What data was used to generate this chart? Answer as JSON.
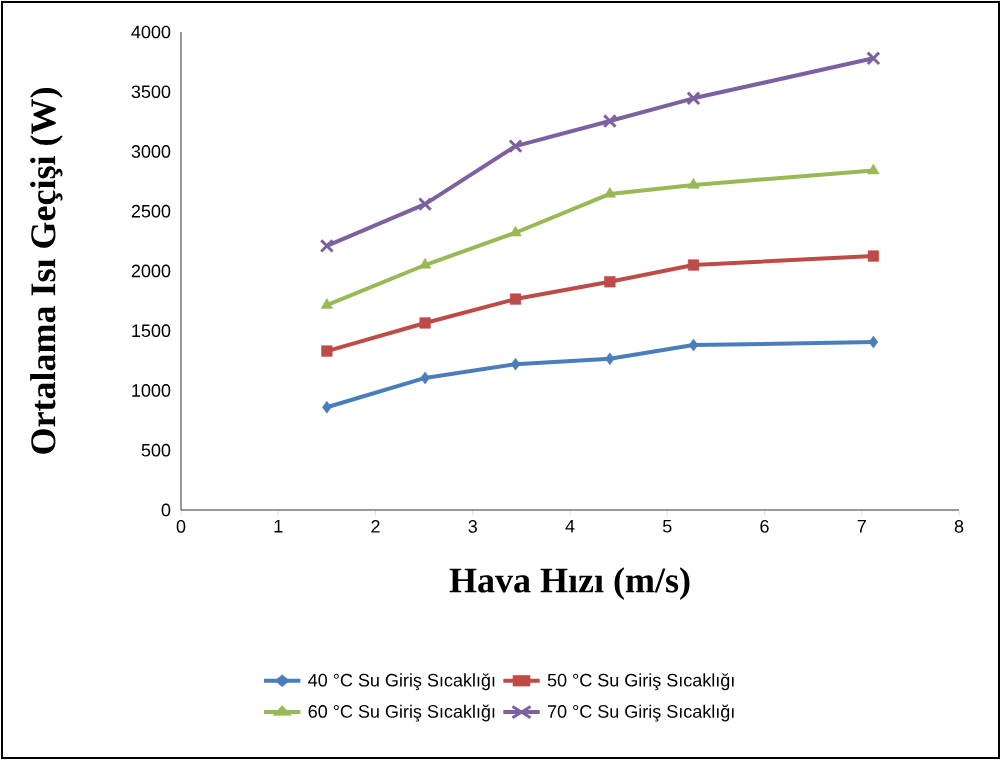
{
  "chart_data": {
    "type": "line",
    "xlabel": "Hava Hızı (m/s)",
    "ylabel": "Ortalama Isı Geçişi (W)",
    "x": [
      1.5,
      2.51,
      3.44,
      4.41,
      5.27,
      7.12
    ],
    "series": [
      {
        "name": "40 °C Su Giriş Sıcaklığı",
        "color": "#4a7ebb",
        "marker": "diamond",
        "values": [
          860,
          1105,
          1220,
          1265,
          1380,
          1405
        ]
      },
      {
        "name": "50 °C Su Giriş Sıcaklığı",
        "color": "#be4b48",
        "marker": "square",
        "values": [
          1330,
          1565,
          1765,
          1910,
          2050,
          2125
        ]
      },
      {
        "name": "60 °C Su Giriş Sıcaklığı",
        "color": "#98b954",
        "marker": "triangle",
        "values": [
          1715,
          2050,
          2320,
          2645,
          2720,
          2840
        ]
      },
      {
        "name": "70 °C Su Giriş Sıcaklığı",
        "color": "#7d60a0",
        "marker": "cross",
        "values": [
          2210,
          2560,
          3045,
          3255,
          3445,
          3780
        ]
      }
    ],
    "xlim": [
      0,
      8
    ],
    "xticks": [
      0,
      1,
      2,
      3,
      4,
      5,
      6,
      7,
      8
    ],
    "ylim": [
      0,
      4000
    ],
    "yticks": [
      0,
      500,
      1000,
      1500,
      2000,
      2500,
      3000,
      3500,
      4000
    ],
    "grid": false,
    "legend": "bottom"
  }
}
